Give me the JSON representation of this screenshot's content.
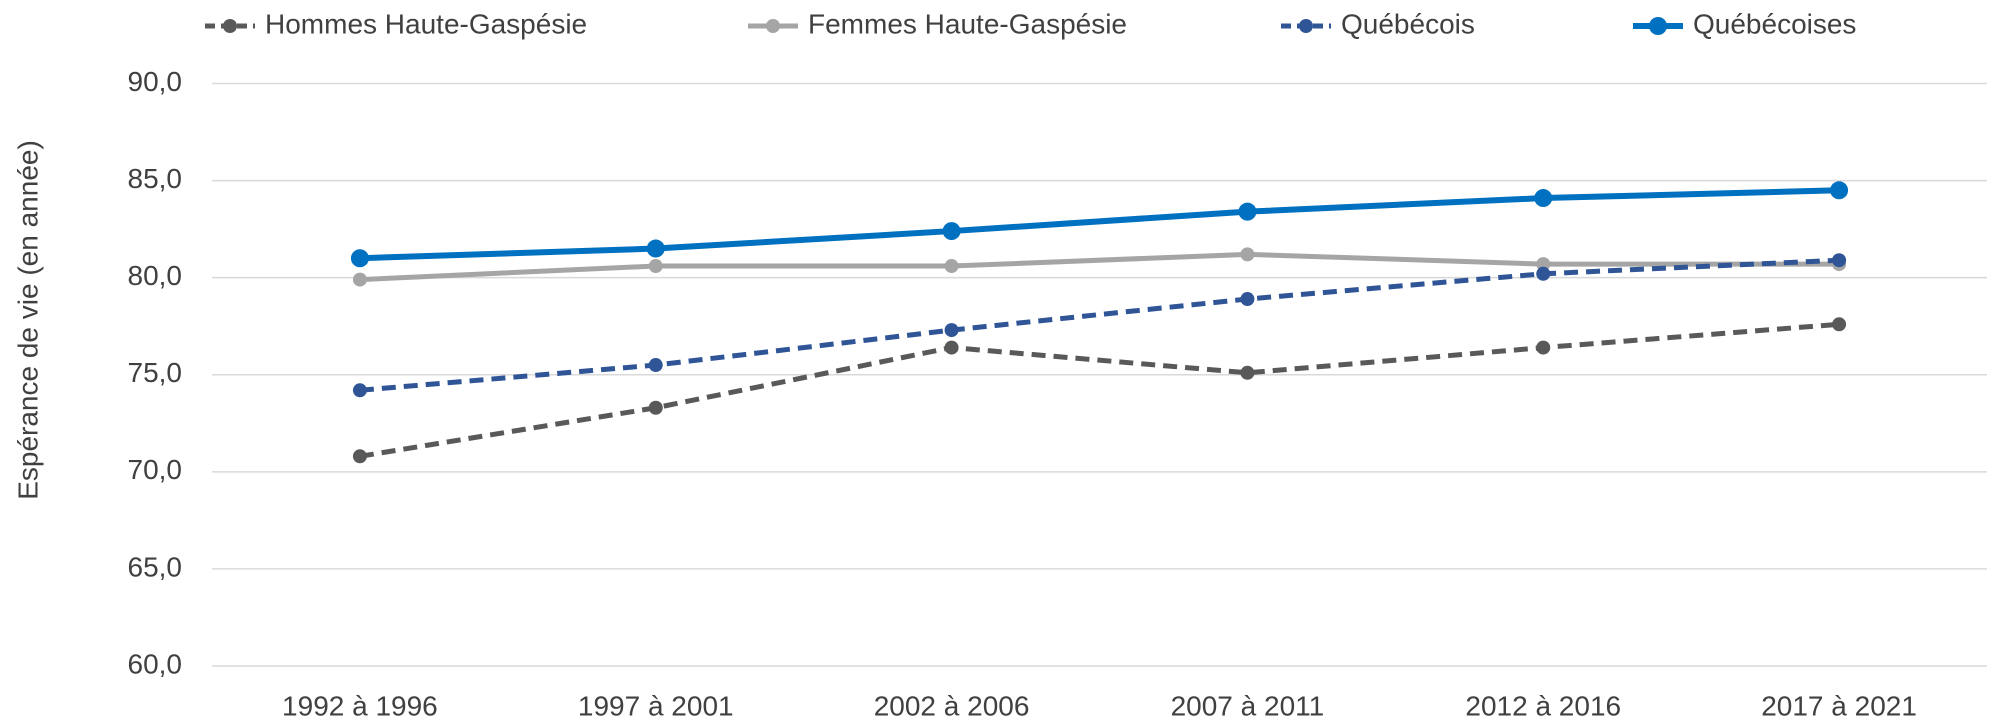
{
  "chart_data": {
    "type": "line",
    "y_label": "Espérance de vie (en année)",
    "categories": [
      "1992 à 1996",
      "1997 à 2001",
      "2002 à 2006",
      "2007 à 2011",
      "2012 à 2016",
      "2017 à 2021"
    ],
    "series": [
      {
        "name": "Hommes Haute-Gaspésie",
        "color": "#595959",
        "line_style": "dashed",
        "values": [
          70.8,
          73.3,
          76.4,
          75.1,
          76.4,
          77.6
        ]
      },
      {
        "name": "Femmes Haute-Gaspésie",
        "color": "#a5a5a5",
        "line_style": "solid",
        "values": [
          79.9,
          80.6,
          80.6,
          81.2,
          80.7,
          80.7
        ]
      },
      {
        "name": "Québécois",
        "color": "#2f5597",
        "line_style": "dashed",
        "values": [
          74.2,
          75.5,
          77.3,
          78.9,
          80.2,
          80.9
        ]
      },
      {
        "name": "Québécoises",
        "color": "#0070c0",
        "line_style": "solid",
        "values": [
          81.0,
          81.5,
          82.4,
          83.4,
          84.1,
          84.5
        ]
      }
    ],
    "ylim": [
      60,
      90
    ],
    "yticks": [
      {
        "value": 60,
        "label": "60,0"
      },
      {
        "value": 65,
        "label": "65,0"
      },
      {
        "value": 70,
        "label": "70,0"
      },
      {
        "value": 75,
        "label": "75,0"
      },
      {
        "value": 80,
        "label": "80,0"
      },
      {
        "value": 85,
        "label": "85,0"
      },
      {
        "value": 90,
        "label": "90,0"
      }
    ],
    "grid": true,
    "legend": "top"
  }
}
